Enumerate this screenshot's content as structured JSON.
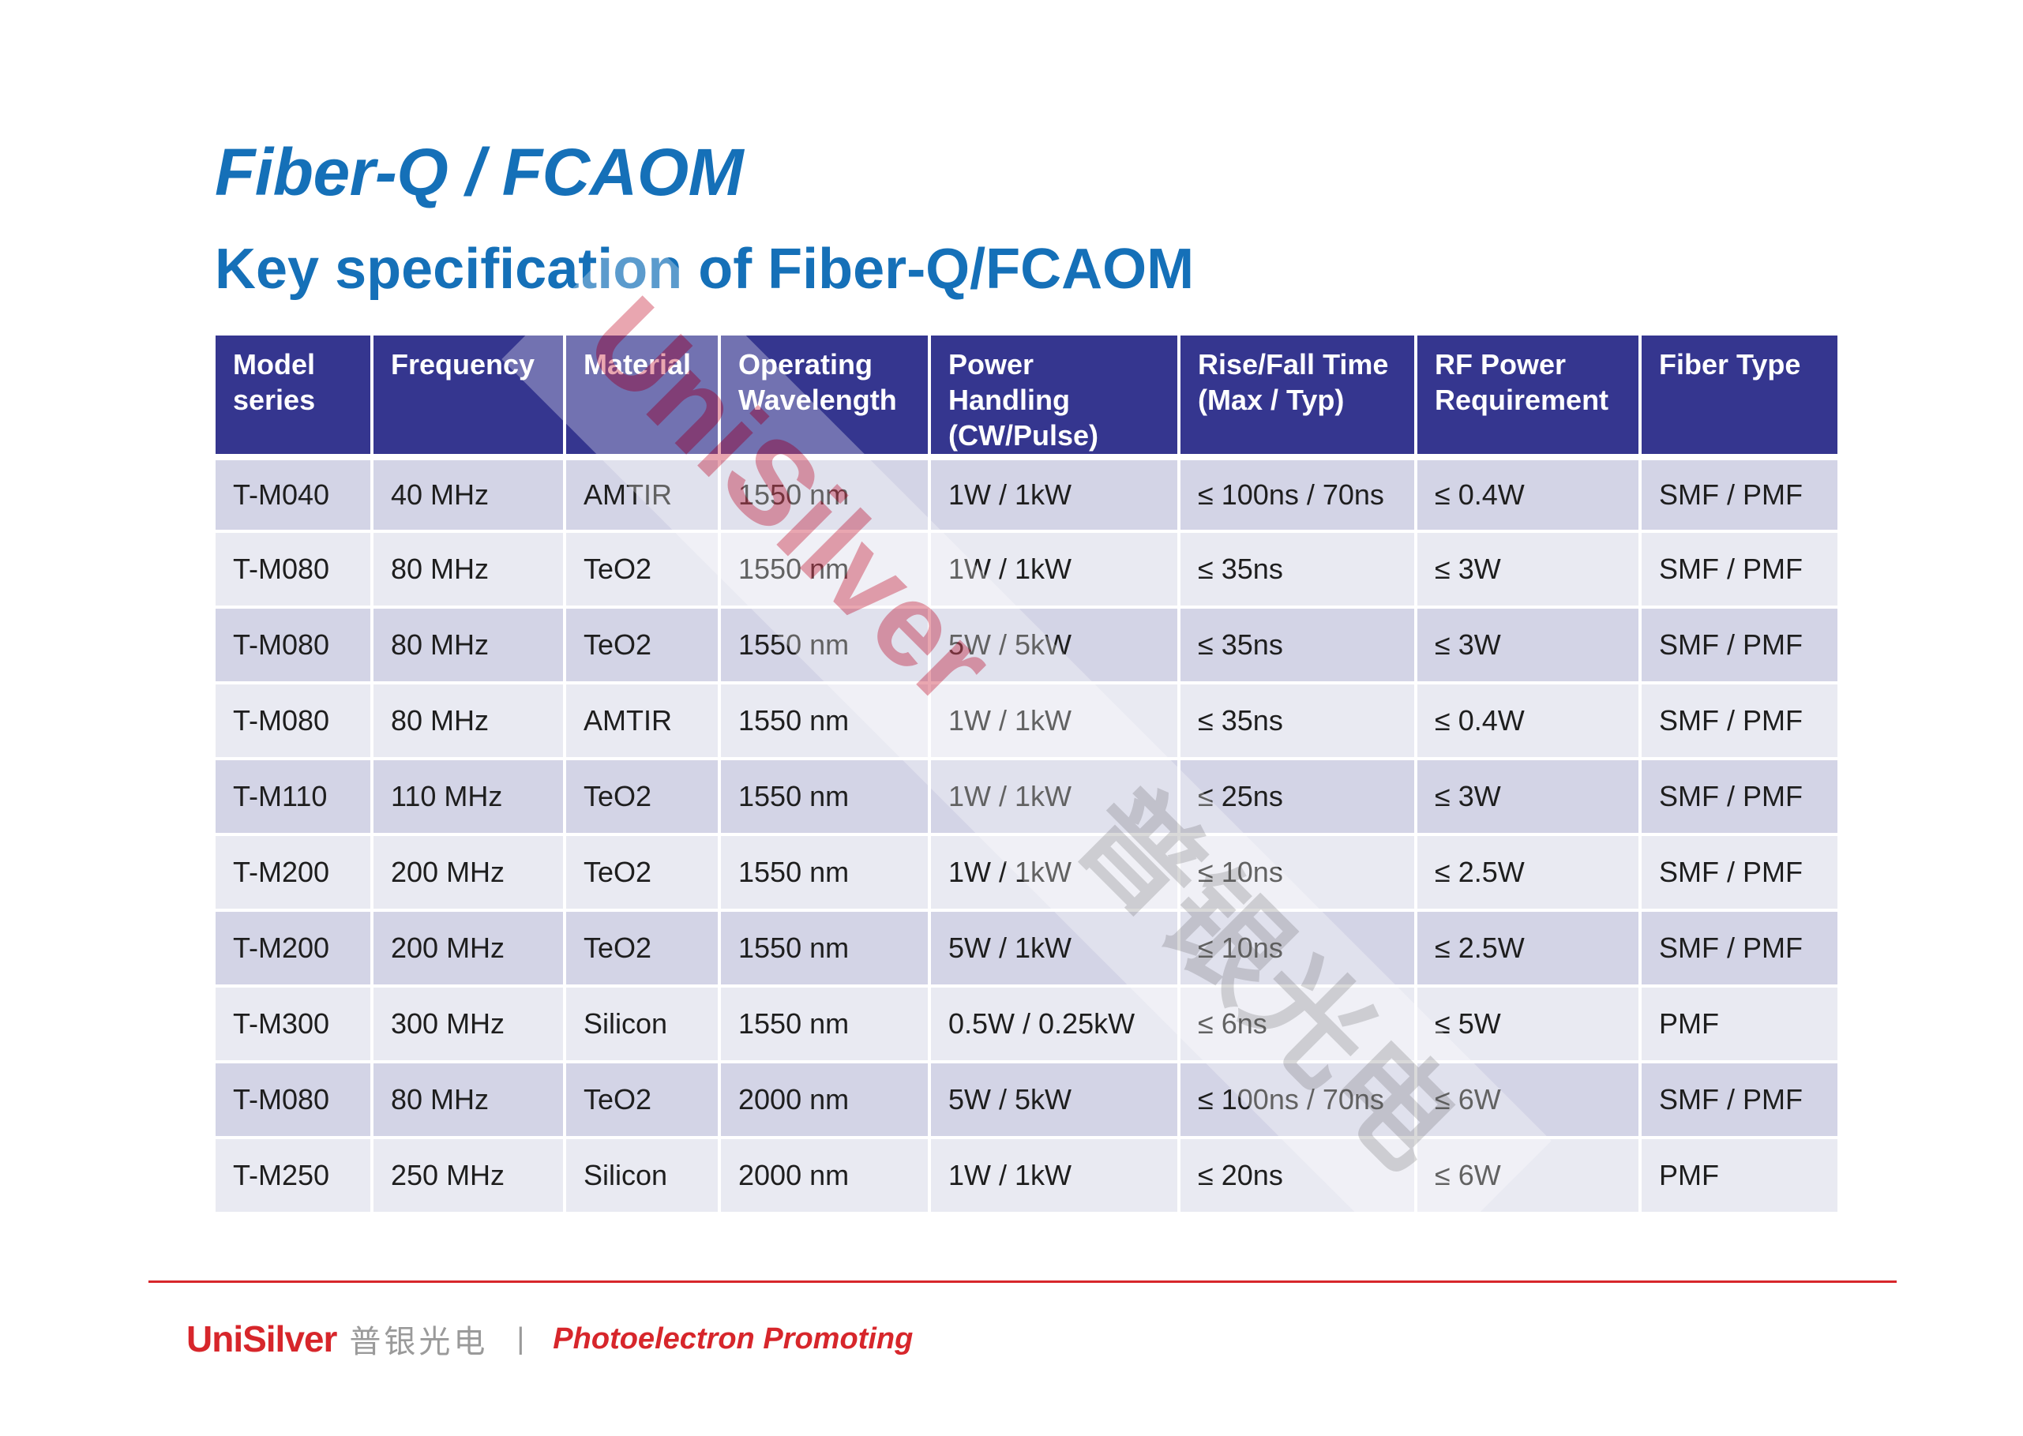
{
  "title": "Fiber-Q / FCAOM",
  "subtitle": "Key specification of Fiber-Q/FCAOM",
  "table": {
    "headers": [
      [
        "Model",
        "series"
      ],
      [
        "Frequency"
      ],
      [
        "Material"
      ],
      [
        "Operating",
        "Wavelength"
      ],
      [
        "Power",
        "Handling",
        "(CW/Pulse)"
      ],
      [
        "Rise/Fall Time",
        "(Max / Typ)"
      ],
      [
        "RF Power",
        "Requirement"
      ],
      [
        "Fiber Type"
      ]
    ],
    "rows": [
      [
        "T-M040",
        "40 MHz",
        "AMTIR",
        "1550 nm",
        "1W / 1kW",
        "≤ 100ns / 70ns",
        "≤ 0.4W",
        "SMF / PMF"
      ],
      [
        "T-M080",
        "80 MHz",
        "TeO2",
        "1550 nm",
        "1W / 1kW",
        "≤ 35ns",
        "≤ 3W",
        "SMF / PMF"
      ],
      [
        "T-M080",
        "80 MHz",
        "TeO2",
        "1550 nm",
        "5W / 5kW",
        "≤ 35ns",
        "≤ 3W",
        "SMF / PMF"
      ],
      [
        "T-M080",
        "80 MHz",
        "AMTIR",
        "1550 nm",
        "1W / 1kW",
        "≤ 35ns",
        "≤ 0.4W",
        "SMF / PMF"
      ],
      [
        "T-M110",
        "110 MHz",
        "TeO2",
        "1550 nm",
        "1W / 1kW",
        "≤ 25ns",
        "≤ 3W",
        "SMF / PMF"
      ],
      [
        "T-M200",
        "200 MHz",
        "TeO2",
        "1550 nm",
        "1W / 1kW",
        "≤ 10ns",
        "≤ 2.5W",
        "SMF / PMF"
      ],
      [
        "T-M200",
        "200 MHz",
        "TeO2",
        "1550 nm",
        "5W / 1kW",
        "≤ 10ns",
        "≤ 2.5W",
        "SMF / PMF"
      ],
      [
        "T-M300",
        "300 MHz",
        "Silicon",
        "1550 nm",
        "0.5W / 0.25kW",
        "≤ 6ns",
        "≤ 5W",
        "PMF"
      ],
      [
        "T-M080",
        "80 MHz",
        "TeO2",
        "2000 nm",
        "5W / 5kW",
        "≤ 100ns / 70ns",
        "≤ 6W",
        "SMF / PMF"
      ],
      [
        "T-M250",
        "250 MHz",
        "Silicon",
        "2000 nm",
        "1W / 1kW",
        "≤ 20ns",
        "≤ 6W",
        "PMF"
      ]
    ]
  },
  "watermark": {
    "latin": "UniSilver",
    "cn": "普银光电"
  },
  "footer": {
    "logo_latin": "UniSilver",
    "logo_cn": "普银光电",
    "separator": "|",
    "tagline": "Photoelectron Promoting"
  },
  "colors": {
    "title": "#1570b8",
    "header_bg": "#35368f",
    "row_odd": "#d3d4e6",
    "row_even": "#e9eaf2",
    "brand_red": "#d7262b"
  }
}
